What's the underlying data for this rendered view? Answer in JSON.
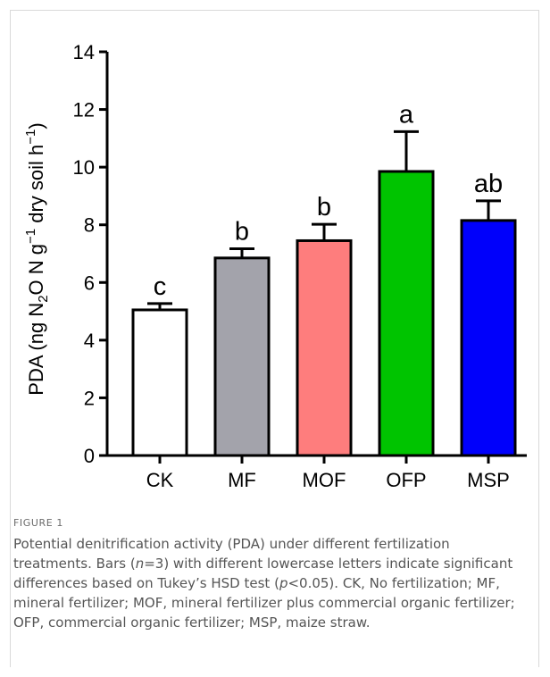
{
  "figure": {
    "label": "FIGURE 1",
    "caption_parts": [
      "Potential denitrification activity (PDA) under different fertilization treatments. Bars (",
      "n",
      "=3) with different lowercase letters indicate significant differences based on Tukey’s HSD test (",
      "p",
      "<0.05). CK, No fertilization; MF, mineral fertilizer; MOF, mineral fertilizer plus commercial organic fertilizer; OFP, commercial organic fertilizer; MSP, maize straw."
    ]
  },
  "chart_data": {
    "type": "bar",
    "ylabel_parts": {
      "a": "PDA (ng N",
      "sub": "2",
      "b": "O N g",
      "sup1": "−1",
      "c": " dry soil h",
      "sup2": "−1",
      "d": ")"
    },
    "ylim": [
      0,
      14
    ],
    "yticks": [
      "0",
      "2",
      "4",
      "6",
      "8",
      "10",
      "12",
      "14"
    ],
    "categories": [
      "CK",
      "MF",
      "MOF",
      "OFP",
      "MSP"
    ],
    "values": [
      5.05,
      6.85,
      7.45,
      9.85,
      8.15
    ],
    "errors": [
      0.22,
      0.32,
      0.57,
      1.38,
      0.68
    ],
    "letters": [
      "c",
      "b",
      "b",
      "a",
      "ab"
    ],
    "colors": [
      "#ffffff",
      "#a3a3ab",
      "#fe7d7d",
      "#00c400",
      "#0000fb"
    ],
    "grid": false
  }
}
